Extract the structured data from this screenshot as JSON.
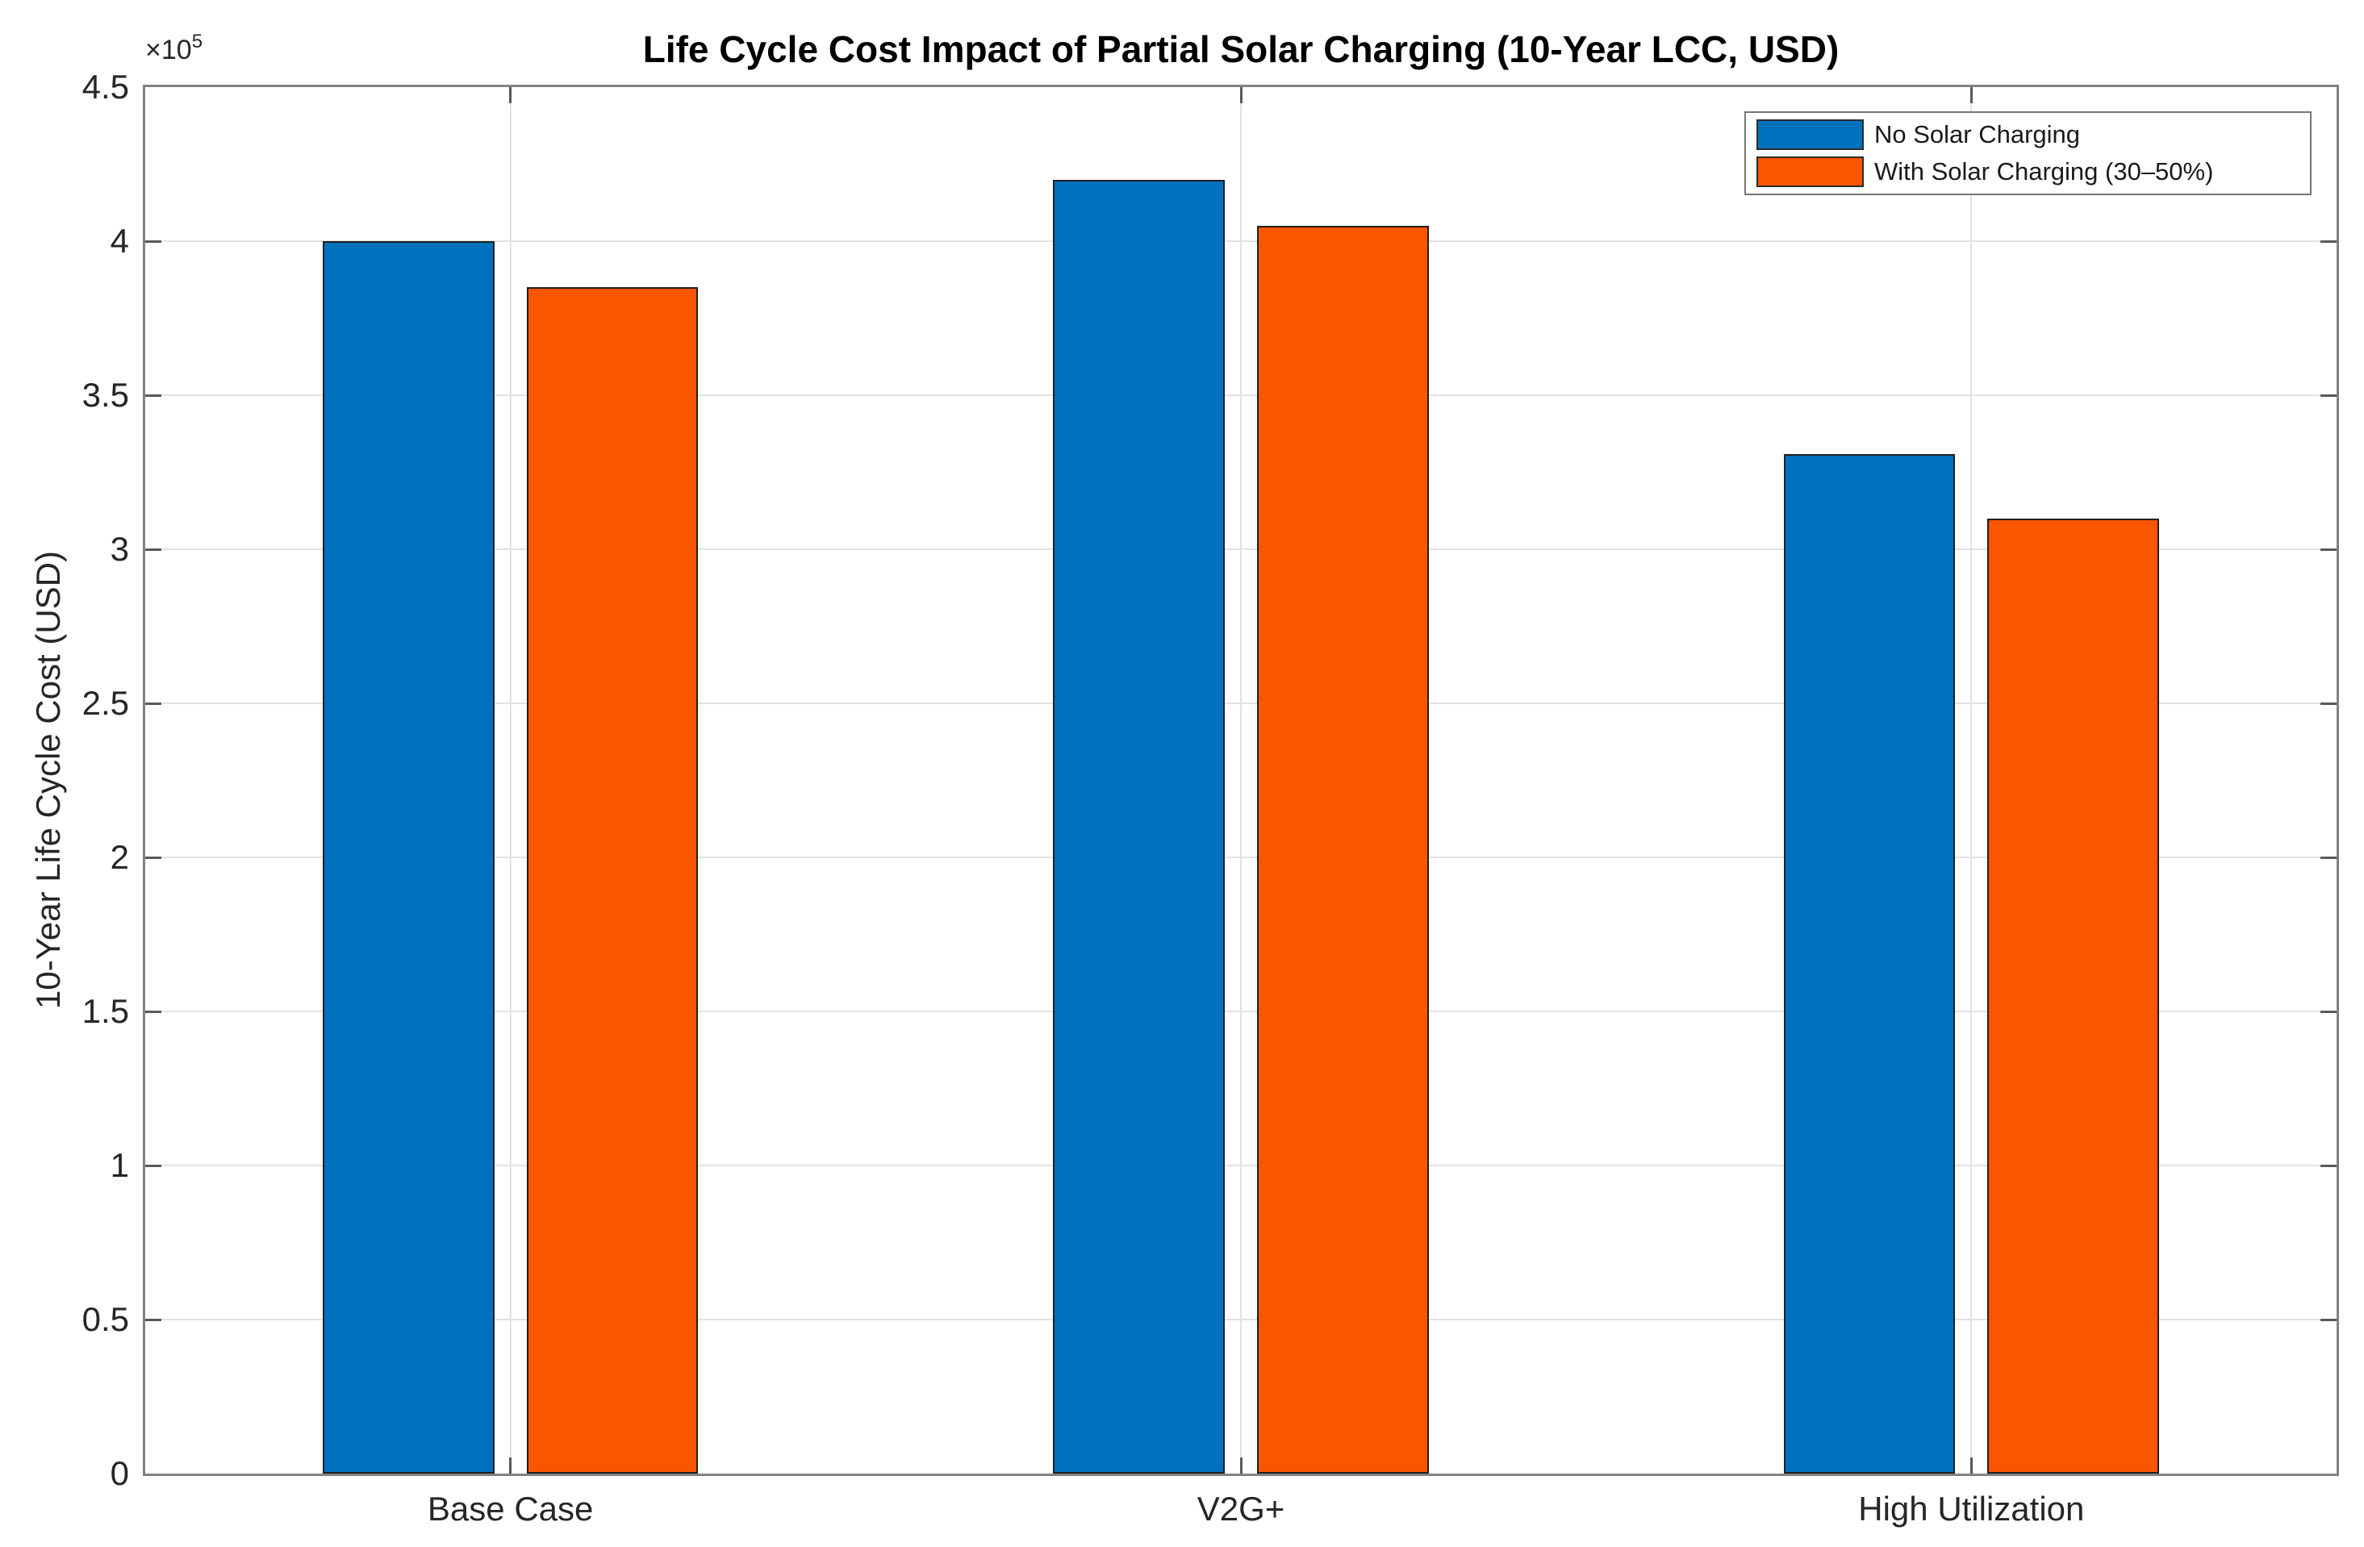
{
  "chart_data": {
    "type": "bar",
    "title": "Life Cycle Cost Impact of Partial Solar Charging (10-Year LCC, USD)",
    "ylabel": "10-Year Life Cycle Cost (USD)",
    "xlabel": "",
    "y_offset": {
      "base": "×10",
      "exponent": "5"
    },
    "categories": [
      "Base Case",
      "V2G+",
      "High Utilization"
    ],
    "series": [
      {
        "name": "No Solar Charging",
        "color": "#0072BD",
        "values": [
          400000,
          420000,
          331000
        ]
      },
      {
        "name": "With Solar Charging (30–50%)",
        "color": "#FA5500",
        "values": [
          385000,
          405000,
          310000
        ]
      }
    ],
    "ylim": [
      0,
      450000
    ],
    "ytick_values": [
      0,
      50000,
      100000,
      150000,
      200000,
      250000,
      300000,
      350000,
      400000,
      450000
    ],
    "ytick_labels": [
      "0",
      "0.5",
      "1",
      "1.5",
      "2",
      "2.5",
      "3",
      "3.5",
      "4",
      "4.5"
    ],
    "grid": "on",
    "legend_position": "top-right",
    "axis_colors": {
      "box": "#828282",
      "tick": "#595959",
      "grid": "#e2e2e2",
      "text": "#262626"
    }
  }
}
